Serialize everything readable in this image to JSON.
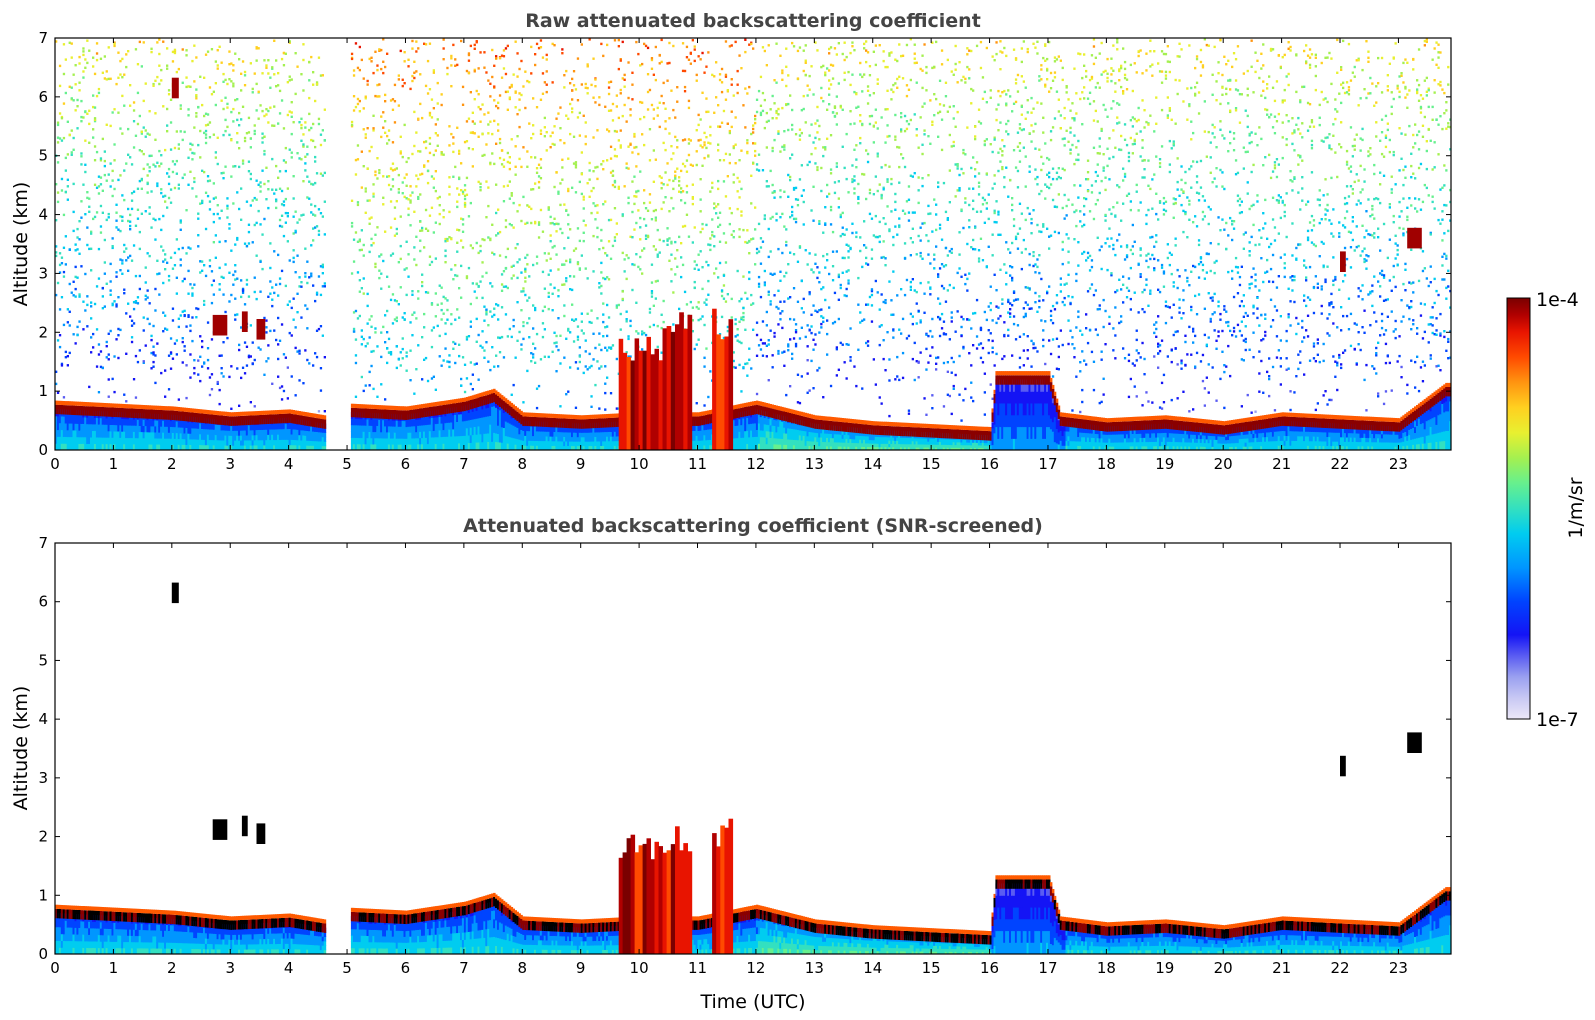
{
  "chart_data": [
    {
      "type": "heatmap",
      "title": "Raw attenuated backscattering coefficient",
      "xlabel": "",
      "ylabel": "Altitude (km)",
      "xlim": [
        0,
        23.9
      ],
      "ylim": [
        0,
        7
      ],
      "x_ticks": [
        0,
        1,
        2,
        3,
        4,
        5,
        6,
        7,
        8,
        9,
        10,
        11,
        12,
        13,
        14,
        15,
        16,
        17,
        18,
        19,
        20,
        21,
        22,
        23
      ],
      "y_ticks": [
        0,
        1,
        2,
        3,
        4,
        5,
        6,
        7
      ],
      "data_gaps_hours": [
        [
          4.62,
          5.05
        ]
      ],
      "boundary_layer_top_km": [
        [
          0,
          0.7
        ],
        [
          1,
          0.65
        ],
        [
          2,
          0.6
        ],
        [
          3,
          0.5
        ],
        [
          4,
          0.55
        ],
        [
          4.6,
          0.45
        ],
        [
          5,
          0.65
        ],
        [
          6,
          0.6
        ],
        [
          7,
          0.75
        ],
        [
          7.5,
          0.9
        ],
        [
          8,
          0.5
        ],
        [
          9,
          0.45
        ],
        [
          10,
          0.5
        ],
        [
          11,
          0.5
        ],
        [
          12,
          0.7
        ],
        [
          13,
          0.45
        ],
        [
          14,
          0.35
        ],
        [
          15,
          0.3
        ],
        [
          16,
          0.25
        ],
        [
          16.1,
          1.2
        ],
        [
          17,
          1.2
        ],
        [
          17.2,
          0.5
        ],
        [
          18,
          0.4
        ],
        [
          19,
          0.45
        ],
        [
          20,
          0.35
        ],
        [
          21,
          0.5
        ],
        [
          22,
          0.45
        ],
        [
          23,
          0.4
        ],
        [
          23.8,
          1.0
        ]
      ],
      "elevated_layers": [
        {
          "x_start": 2.0,
          "x_end": 2.12,
          "alt_km": 6.15
        },
        {
          "x_start": 2.7,
          "x_end": 2.95,
          "alt_km": 2.12
        },
        {
          "x_start": 3.2,
          "x_end": 3.3,
          "alt_km": 2.18
        },
        {
          "x_start": 3.45,
          "x_end": 3.6,
          "alt_km": 2.05
        },
        {
          "x_start": 9.65,
          "x_end": 10.4,
          "alt_km": 2.0
        },
        {
          "x_start": 10.4,
          "x_end": 10.9,
          "alt_km": 2.3
        },
        {
          "x_start": 11.25,
          "x_end": 11.6,
          "alt_km": 2.4
        },
        {
          "x_start": 22.0,
          "x_end": 22.1,
          "alt_km": 3.2
        },
        {
          "x_start": 23.15,
          "x_end": 23.4,
          "alt_km": 3.6
        }
      ]
    },
    {
      "type": "heatmap",
      "title": "Attenuated backscattering coefficient (SNR-screened)",
      "xlabel": "Time (UTC)",
      "ylabel": "Altitude (km)",
      "xlim": [
        0,
        23.9
      ],
      "ylim": [
        0,
        7
      ],
      "x_ticks": [
        0,
        1,
        2,
        3,
        4,
        5,
        6,
        7,
        8,
        9,
        10,
        11,
        12,
        13,
        14,
        15,
        16,
        17,
        18,
        19,
        20,
        21,
        22,
        23
      ],
      "y_ticks": [
        0,
        1,
        2,
        3,
        4,
        5,
        6,
        7
      ]
    }
  ],
  "colorbar": {
    "label": "1/m/sr",
    "max_label": "1e-4",
    "min_label": "1e-7",
    "scale": "log",
    "colors": [
      "#ece8f8",
      "#c8c8f4",
      "#9aa0f0",
      "#5a5cf2",
      "#1414f5",
      "#0044ff",
      "#0096ff",
      "#00ccf0",
      "#33e0c0",
      "#66f08e",
      "#a4f050",
      "#e8f030",
      "#ffd020",
      "#ff9410",
      "#ff4a00",
      "#e81400",
      "#b00000",
      "#7a0000"
    ]
  }
}
